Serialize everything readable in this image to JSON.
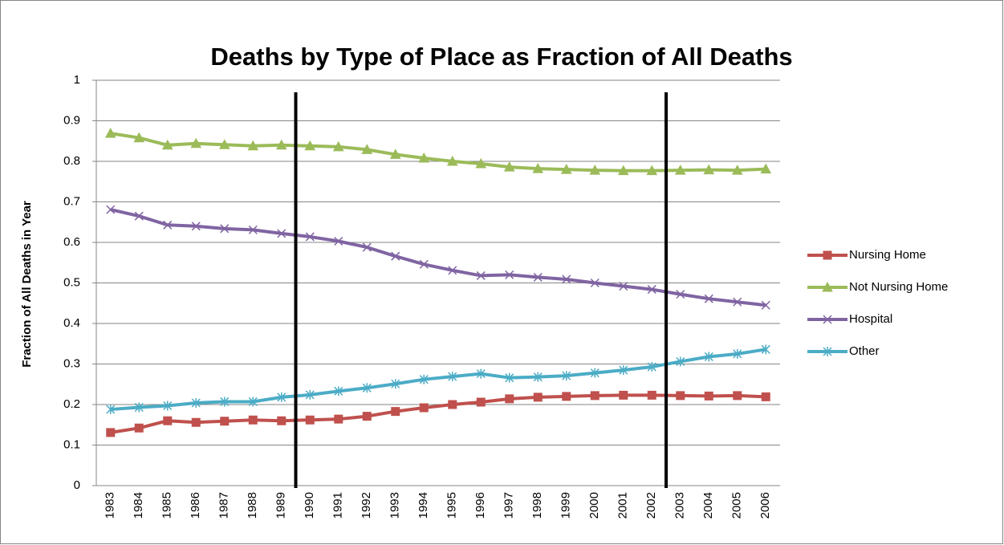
{
  "chart_data": {
    "type": "line",
    "title": "Deaths by Type of Place as Fraction of All Deaths",
    "y_label": "Fraction of All Deaths in Year",
    "categories": [
      "1983",
      "1984",
      "1985",
      "1986",
      "1987",
      "1988",
      "1989",
      "1990",
      "1991",
      "1992",
      "1993",
      "1994",
      "1995",
      "1996",
      "1997",
      "1998",
      "1999",
      "2000",
      "2001",
      "2002",
      "2003",
      "2004",
      "2005",
      "2006"
    ],
    "series": [
      {
        "name": "Nursing Home",
        "color": "#c0504d",
        "marker": "square",
        "values": [
          0.131,
          0.142,
          0.16,
          0.156,
          0.159,
          0.162,
          0.16,
          0.162,
          0.164,
          0.171,
          0.183,
          0.192,
          0.2,
          0.206,
          0.214,
          0.218,
          0.22,
          0.222,
          0.223,
          0.223,
          0.222,
          0.221,
          0.222,
          0.219
        ]
      },
      {
        "name": "Not Nursing Home",
        "color": "#9bbb59",
        "marker": "triangle",
        "values": [
          0.869,
          0.858,
          0.84,
          0.844,
          0.841,
          0.838,
          0.84,
          0.838,
          0.836,
          0.829,
          0.817,
          0.808,
          0.8,
          0.794,
          0.786,
          0.782,
          0.78,
          0.778,
          0.777,
          0.777,
          0.778,
          0.779,
          0.778,
          0.781
        ]
      },
      {
        "name": "Hospital",
        "color": "#8064a2",
        "marker": "x",
        "values": [
          0.681,
          0.665,
          0.643,
          0.64,
          0.634,
          0.631,
          0.622,
          0.614,
          0.603,
          0.588,
          0.566,
          0.546,
          0.531,
          0.518,
          0.52,
          0.514,
          0.509,
          0.5,
          0.492,
          0.484,
          0.472,
          0.461,
          0.453,
          0.445
        ]
      },
      {
        "name": "Other",
        "color": "#4bacc6",
        "marker": "star",
        "values": [
          0.188,
          0.193,
          0.197,
          0.204,
          0.207,
          0.207,
          0.218,
          0.224,
          0.233,
          0.241,
          0.251,
          0.262,
          0.269,
          0.276,
          0.266,
          0.268,
          0.271,
          0.278,
          0.285,
          0.293,
          0.306,
          0.318,
          0.325,
          0.336
        ]
      }
    ],
    "ylim": [
      0,
      1
    ],
    "yticks": [
      0,
      0.1,
      0.2,
      0.3,
      0.4,
      0.5,
      0.6,
      0.7,
      0.8,
      0.9,
      1
    ],
    "grid": true,
    "legend": "right"
  }
}
